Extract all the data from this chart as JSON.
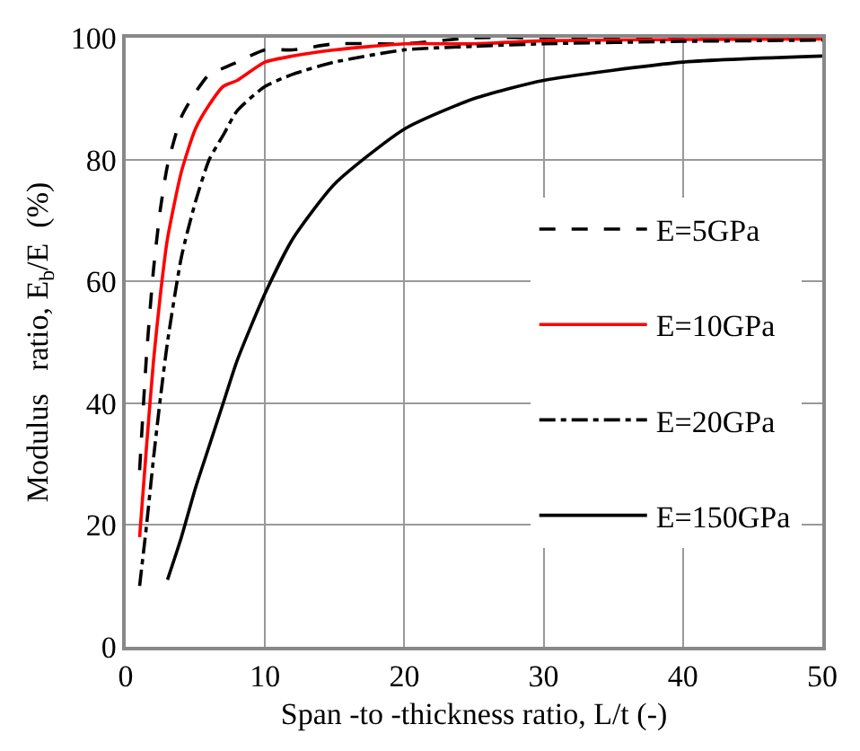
{
  "chart_data": {
    "type": "line",
    "xlabel": "Span -to -thickness ratio, L/t (-)",
    "ylabel": "Modulus   ratio, E$_{b}$/E  (%)",
    "xlim": [
      0,
      50
    ],
    "xticks": [
      0,
      10,
      20,
      30,
      40,
      50
    ],
    "ylim": [
      0,
      100
    ],
    "yticks": [
      0,
      20,
      40,
      60,
      80,
      100
    ],
    "grid": true,
    "legend": "right",
    "marker": "none",
    "series": [
      {
        "name": "E=5GPa",
        "color": "#000000",
        "line_style": "dashed",
        "x": [
          1,
          1.5,
          2,
          2.5,
          3,
          4,
          5,
          6,
          7,
          8,
          10,
          12,
          15,
          20,
          25,
          30,
          40,
          50
        ],
        "values": [
          29,
          48,
          62,
          72,
          79,
          87,
          91,
          94,
          95,
          96,
          98,
          98,
          99,
          99,
          100,
          100,
          100,
          100
        ]
      },
      {
        "name": "E=10GPa",
        "color": "#ff0000",
        "line_style": "solid",
        "x": [
          1,
          1.5,
          2,
          2.5,
          3,
          4,
          5,
          6,
          7,
          8,
          10,
          12,
          15,
          20,
          25,
          30,
          40,
          50
        ],
        "values": [
          18,
          33,
          47,
          58,
          67,
          78,
          85,
          89,
          92,
          93,
          96,
          97,
          98,
          99,
          99,
          99.5,
          99.7,
          99.8
        ]
      },
      {
        "name": "E=20GPa",
        "color": "#000000",
        "line_style": "dashdot",
        "x": [
          1,
          1.5,
          2,
          2.5,
          3,
          4,
          5,
          6,
          7,
          8,
          10,
          12,
          15,
          20,
          25,
          30,
          40,
          50
        ],
        "values": [
          10,
          20,
          31,
          41,
          50,
          64,
          73,
          80,
          84,
          88,
          92,
          94,
          96,
          98,
          98.6,
          99,
          99.4,
          99.6
        ]
      },
      {
        "name": "E=150GPa",
        "color": "#000000",
        "line_style": "solid",
        "x": [
          3,
          4,
          5,
          6,
          7,
          8,
          10,
          12,
          15,
          20,
          25,
          30,
          40,
          50
        ],
        "values": [
          11,
          18,
          26,
          33,
          40,
          47,
          58,
          67,
          76,
          85,
          90,
          93,
          96,
          97
        ]
      }
    ]
  }
}
